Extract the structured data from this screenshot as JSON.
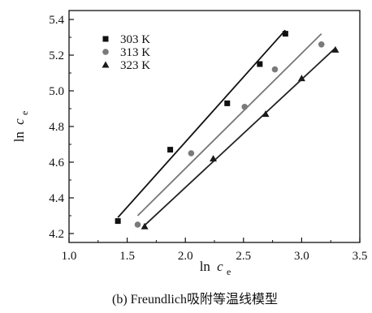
{
  "chart_data": {
    "type": "scatter",
    "caption": "(b) Freundlich吸附等温线模型",
    "xlabel": {
      "main": "ln",
      "var": "c",
      "sub": "e"
    },
    "ylabel": {
      "main": "ln",
      "var": "c",
      "sub": "e"
    },
    "xlim": [
      1.0,
      3.5
    ],
    "ylim": [
      4.15,
      5.45
    ],
    "xticks": [
      "1.0",
      "1.5",
      "2.0",
      "2.5",
      "3.0",
      "3.5"
    ],
    "yticks": [
      "4.2",
      "4.4",
      "4.6",
      "4.8",
      "5.0",
      "5.2",
      "5.4"
    ],
    "xtick_values": [
      1.0,
      1.5,
      2.0,
      2.5,
      3.0,
      3.5
    ],
    "ytick_values": [
      4.2,
      4.4,
      4.6,
      4.8,
      5.0,
      5.2,
      5.4
    ],
    "grid": false,
    "legend_position": "top-left",
    "series": [
      {
        "name": "303 K",
        "marker": "square",
        "color": "#111111",
        "line_color": "#111111",
        "x": [
          1.42,
          1.87,
          2.36,
          2.64,
          2.86
        ],
        "y": [
          4.27,
          4.67,
          4.93,
          5.15,
          5.32
        ],
        "fit": {
          "x": [
            1.42,
            2.86
          ],
          "y": [
            4.29,
            5.34
          ]
        }
      },
      {
        "name": "313 K",
        "marker": "circle",
        "color": "#7a7a7a",
        "line_color": "#777777",
        "x": [
          1.59,
          2.05,
          2.51,
          2.77,
          3.17
        ],
        "y": [
          4.25,
          4.65,
          4.91,
          5.12,
          5.26
        ],
        "fit": {
          "x": [
            1.59,
            3.17
          ],
          "y": [
            4.3,
            5.32
          ]
        }
      },
      {
        "name": "323 K",
        "marker": "triangle",
        "color": "#1a1a1a",
        "line_color": "#222222",
        "x": [
          1.65,
          2.24,
          2.69,
          3.0,
          3.29
        ],
        "y": [
          4.24,
          4.62,
          4.87,
          5.07,
          5.23
        ],
        "fit": {
          "x": [
            1.64,
            3.29
          ],
          "y": [
            4.24,
            5.24
          ]
        }
      }
    ]
  }
}
